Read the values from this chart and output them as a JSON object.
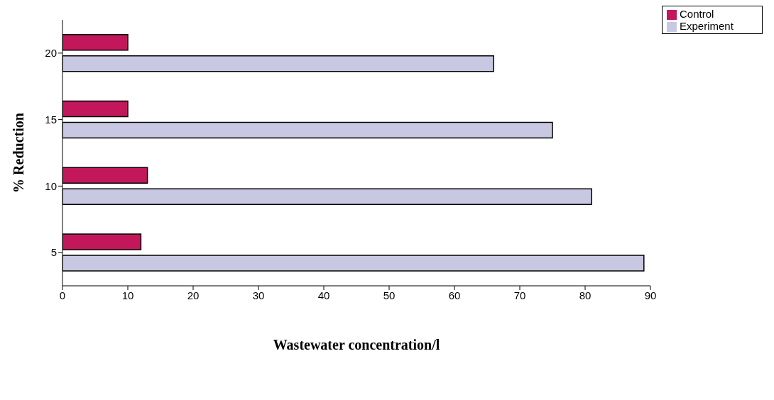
{
  "chart_data": {
    "type": "bar",
    "orientation": "horizontal",
    "xlabel": "Wastewater concentration/l",
    "ylabel": "% Reduction",
    "categories": [
      "20",
      "15",
      "10",
      "5"
    ],
    "series": [
      {
        "name": "Control",
        "color": "#c2185b",
        "values": [
          10,
          10,
          13,
          12
        ]
      },
      {
        "name": "Experiment",
        "color": "#c8c8e2",
        "values": [
          66,
          75,
          81,
          89
        ]
      }
    ],
    "xlim": [
      0,
      90
    ],
    "xticks": [
      0,
      10,
      20,
      30,
      40,
      50,
      60,
      70,
      80,
      90
    ],
    "legend": "top right"
  }
}
